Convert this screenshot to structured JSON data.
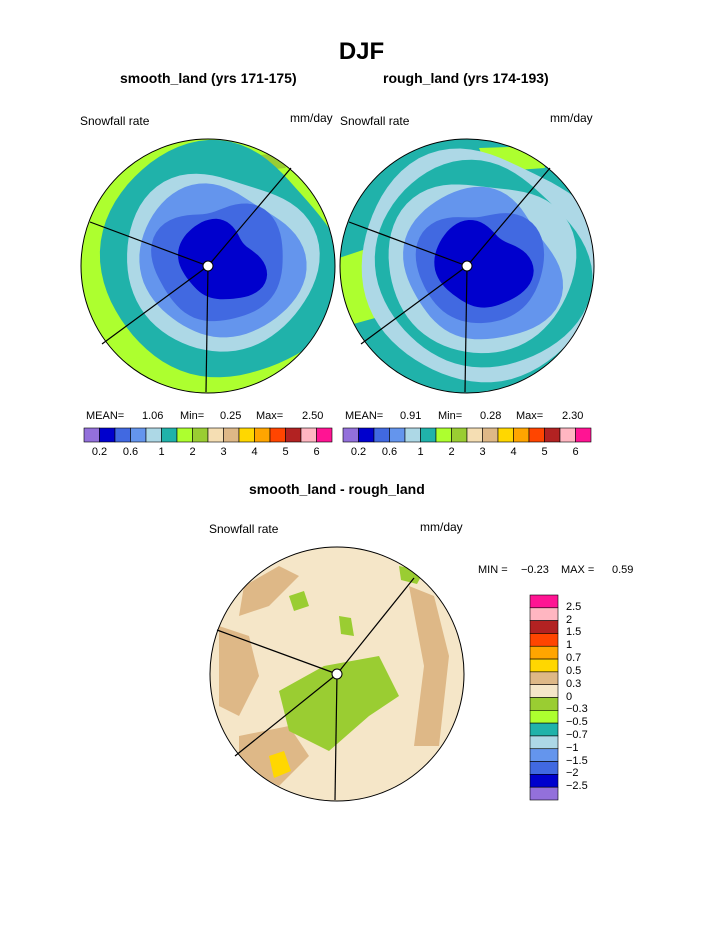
{
  "page": {
    "title": "DJF"
  },
  "colors": {
    "absolute_scale": [
      "#9370db",
      "#0000cd",
      "#4169e1",
      "#6495ed",
      "#add8e6",
      "#20b2aa",
      "#adff2f",
      "#9acd32",
      "#f5deb3",
      "#deb887",
      "#ffd700",
      "#ffa500",
      "#ff4500",
      "#b22222",
      "#ffb6c1",
      "#ff1493"
    ],
    "difference_scale": [
      "#9370db",
      "#0000cd",
      "#4169e1",
      "#6495ed",
      "#add8e6",
      "#20b2aa",
      "#adff2f",
      "#9acd32",
      "#f5e6c8",
      "#deb887",
      "#ffd700",
      "#ffa500",
      "#ff4500",
      "#b22222",
      "#ffb6c1",
      "#ff1493"
    ]
  },
  "chart_data": [
    {
      "type": "heatmap",
      "title": "smooth_land (yrs 171-175)",
      "left_label": "Snowfall rate",
      "units": "mm/day",
      "stats": {
        "mean_label": "MEAN=",
        "mean": "1.06",
        "min_label": "Min=",
        "min": "0.25",
        "max_label": "Max=",
        "max": "2.50"
      },
      "colorbar_ticks": [
        "0.2",
        "0.6",
        "1",
        "2",
        "3",
        "4",
        "5",
        "6"
      ],
      "contour_levels": [
        0.2,
        0.4,
        0.6,
        0.8,
        1,
        1.5,
        2,
        2.5,
        3,
        3.5,
        4,
        4.5,
        5,
        5.5,
        6
      ]
    },
    {
      "type": "heatmap",
      "title": "rough_land (yrs 174-193)",
      "left_label": "Snowfall rate",
      "units": "mm/day",
      "stats": {
        "mean_label": "MEAN=",
        "mean": "0.91",
        "min_label": "Min=",
        "min": "0.28",
        "max_label": "Max=",
        "max": "2.30"
      },
      "colorbar_ticks": [
        "0.2",
        "0.6",
        "1",
        "2",
        "3",
        "4",
        "5",
        "6"
      ],
      "contour_levels": [
        0.2,
        0.4,
        0.6,
        0.8,
        1,
        1.5,
        2,
        2.5,
        3,
        3.5,
        4,
        4.5,
        5,
        5.5,
        6
      ]
    },
    {
      "type": "heatmap",
      "title": "smooth_land - rough_land",
      "left_label": "Snowfall rate",
      "units": "mm/day",
      "stats": {
        "min_label": "MIN =",
        "min": "−0.23",
        "max_label": "MAX =",
        "max": "0.59"
      },
      "colorbar_ticks": [
        "2.5",
        "2",
        "1.5",
        "1",
        "0.7",
        "0.5",
        "0.3",
        "0",
        "−0.3",
        "−0.5",
        "−0.7",
        "−1",
        "−1.5",
        "−2",
        "−2.5"
      ]
    }
  ]
}
